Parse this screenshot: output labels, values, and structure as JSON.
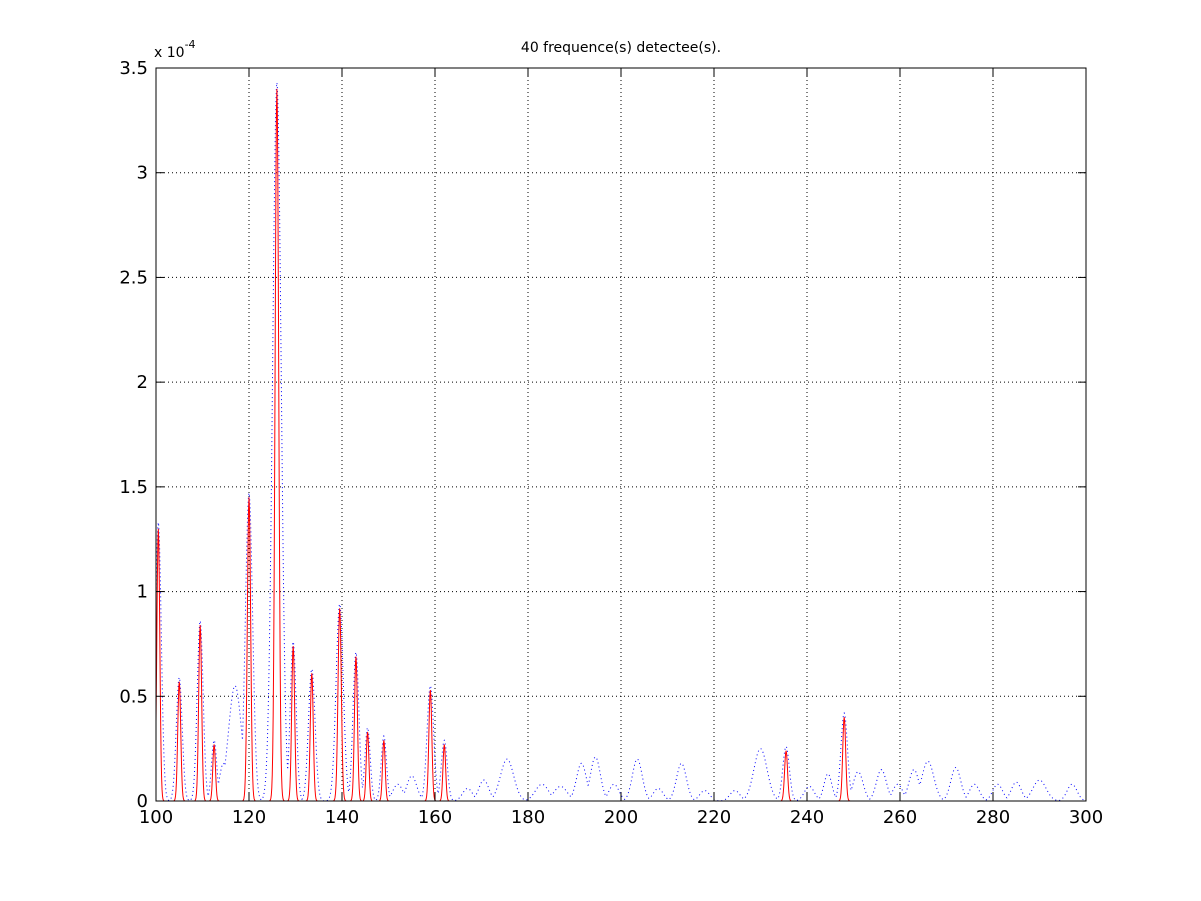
{
  "chart_data": {
    "type": "line",
    "title": "40 frequence(s) detectee(s).",
    "xlabel": "",
    "ylabel": "",
    "exponent_label": {
      "base": "x 10",
      "power": "-4"
    },
    "xlim": [
      100,
      300
    ],
    "ylim": [
      0,
      3.5
    ],
    "grid": true,
    "x_ticks": [
      100,
      120,
      140,
      160,
      180,
      200,
      220,
      240,
      260,
      280,
      300
    ],
    "y_ticks": [
      0,
      0.5,
      1,
      1.5,
      2,
      2.5,
      3,
      3.5
    ],
    "x_tick_labels": [
      "100",
      "120",
      "140",
      "160",
      "180",
      "200",
      "220",
      "240",
      "260",
      "280",
      "300"
    ],
    "y_tick_labels": [
      "0",
      "0.5",
      "1",
      "1.5",
      "2",
      "2.5",
      "3",
      "3.5"
    ],
    "colors": {
      "spectrum": "#0000ff",
      "detected": "#ff0000",
      "axes": "#000000",
      "grid": "#000000"
    },
    "series": [
      {
        "style": "dotted",
        "color": "#0000ff",
        "peaks": [
          [
            100.5,
            1.33,
            0.9
          ],
          [
            105.0,
            0.59,
            0.9
          ],
          [
            109.5,
            0.86,
            0.9
          ],
          [
            112.5,
            0.29,
            0.8
          ],
          [
            114.5,
            0.18,
            1.2
          ],
          [
            117.0,
            0.55,
            2.0
          ],
          [
            120.0,
            1.47,
            1.1
          ],
          [
            126.0,
            3.43,
            1.3
          ],
          [
            129.5,
            0.76,
            0.9
          ],
          [
            133.5,
            0.63,
            1.0
          ],
          [
            139.5,
            0.94,
            1.1
          ],
          [
            143.0,
            0.71,
            0.9
          ],
          [
            145.5,
            0.35,
            0.8
          ],
          [
            149.0,
            0.31,
            0.8
          ],
          [
            152.0,
            0.08,
            1.5
          ],
          [
            155.0,
            0.12,
            1.5
          ],
          [
            159.0,
            0.55,
            1.0
          ],
          [
            162.0,
            0.29,
            0.9
          ],
          [
            167.0,
            0.06,
            1.5
          ],
          [
            170.5,
            0.1,
            1.5
          ],
          [
            175.5,
            0.2,
            2.0
          ],
          [
            183.0,
            0.08,
            2.0
          ],
          [
            187.0,
            0.07,
            2.0
          ],
          [
            191.5,
            0.18,
            1.5
          ],
          [
            194.5,
            0.21,
            1.5
          ],
          [
            198.5,
            0.08,
            1.5
          ],
          [
            203.5,
            0.2,
            1.5
          ],
          [
            208.0,
            0.06,
            1.5
          ],
          [
            213.0,
            0.18,
            1.5
          ],
          [
            218.0,
            0.05,
            1.5
          ],
          [
            224.5,
            0.05,
            1.5
          ],
          [
            230.0,
            0.25,
            2.0
          ],
          [
            235.5,
            0.26,
            1.0
          ],
          [
            240.5,
            0.07,
            1.5
          ],
          [
            244.5,
            0.13,
            1.2
          ],
          [
            248.0,
            0.42,
            1.0
          ],
          [
            251.0,
            0.14,
            1.5
          ],
          [
            256.0,
            0.15,
            1.5
          ],
          [
            259.5,
            0.08,
            1.5
          ],
          [
            263.0,
            0.15,
            1.5
          ],
          [
            266.0,
            0.19,
            1.8
          ],
          [
            272.0,
            0.16,
            1.5
          ],
          [
            276.0,
            0.08,
            1.5
          ],
          [
            281.0,
            0.08,
            1.5
          ],
          [
            285.0,
            0.09,
            1.5
          ],
          [
            290.0,
            0.1,
            2.0
          ],
          [
            297.0,
            0.08,
            1.5
          ]
        ]
      },
      {
        "style": "solid",
        "color": "#ff0000",
        "peaks": [
          [
            100.5,
            1.3,
            0.45
          ],
          [
            105.0,
            0.57,
            0.45
          ],
          [
            109.5,
            0.84,
            0.45
          ],
          [
            112.5,
            0.27,
            0.4
          ],
          [
            120.0,
            1.45,
            0.5
          ],
          [
            126.0,
            3.4,
            0.55
          ],
          [
            129.5,
            0.74,
            0.45
          ],
          [
            133.5,
            0.61,
            0.45
          ],
          [
            139.5,
            0.92,
            0.5
          ],
          [
            143.0,
            0.69,
            0.45
          ],
          [
            145.5,
            0.33,
            0.4
          ],
          [
            149.0,
            0.29,
            0.4
          ],
          [
            159.0,
            0.53,
            0.45
          ],
          [
            162.0,
            0.27,
            0.4
          ],
          [
            235.5,
            0.24,
            0.45
          ],
          [
            248.0,
            0.4,
            0.45
          ]
        ]
      }
    ]
  }
}
